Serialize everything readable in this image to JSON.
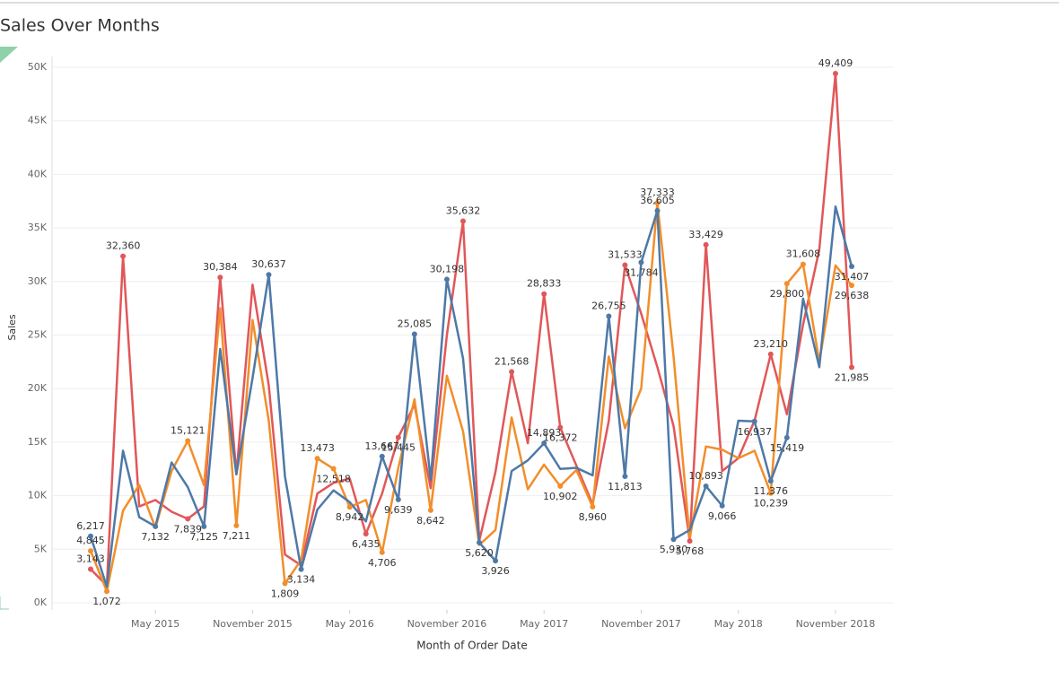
{
  "chart_data": {
    "type": "line",
    "title": "Sales Over Months",
    "x_label": "Month of Order Date",
    "y_label": "Sales",
    "x": [
      "2015-01",
      "2015-02",
      "2015-03",
      "2015-04",
      "2015-05",
      "2015-06",
      "2015-07",
      "2015-08",
      "2015-09",
      "2015-10",
      "2015-11",
      "2015-12",
      "2016-01",
      "2016-02",
      "2016-03",
      "2016-04",
      "2016-05",
      "2016-06",
      "2016-07",
      "2016-08",
      "2016-09",
      "2016-10",
      "2016-11",
      "2016-12",
      "2017-01",
      "2017-02",
      "2017-03",
      "2017-04",
      "2017-05",
      "2017-06",
      "2017-07",
      "2017-08",
      "2017-09",
      "2017-10",
      "2017-11",
      "2017-12",
      "2018-01",
      "2018-02",
      "2018-03",
      "2018-04",
      "2018-05",
      "2018-06",
      "2018-07",
      "2018-08",
      "2018-09",
      "2018-10",
      "2018-11",
      "2018-12"
    ],
    "xticks": [
      {
        "value": "2015-05",
        "label": "May 2015"
      },
      {
        "value": "2015-11",
        "label": "November 2015"
      },
      {
        "value": "2016-05",
        "label": "May 2016"
      },
      {
        "value": "2016-11",
        "label": "November 2016"
      },
      {
        "value": "2017-05",
        "label": "May 2017"
      },
      {
        "value": "2017-11",
        "label": "November 2017"
      },
      {
        "value": "2018-05",
        "label": "May 2018"
      },
      {
        "value": "2018-11",
        "label": "November 2018"
      }
    ],
    "ylim": [
      0,
      50000
    ],
    "yticks": [
      {
        "value": 0,
        "label": "0K"
      },
      {
        "value": 5000,
        "label": "5K"
      },
      {
        "value": 10000,
        "label": "10K"
      },
      {
        "value": 15000,
        "label": "15K"
      },
      {
        "value": 20000,
        "label": "20K"
      },
      {
        "value": 25000,
        "label": "25K"
      },
      {
        "value": 30000,
        "label": "30K"
      },
      {
        "value": 35000,
        "label": "35K"
      },
      {
        "value": 40000,
        "label": "40K"
      },
      {
        "value": 45000,
        "label": "45K"
      },
      {
        "value": 50000,
        "label": "50K"
      }
    ],
    "grid": true,
    "series": [
      {
        "color": "#e15759",
        "values": [
          3143,
          1600,
          32360,
          9000,
          9600,
          8500,
          7839,
          9000,
          30384,
          12000,
          29700,
          20300,
          4500,
          3500,
          10200,
          11200,
          11600,
          6435,
          10200,
          15445,
          18500,
          10700,
          25000,
          35632,
          5800,
          12200,
          21568,
          14900,
          28833,
          16372,
          12800,
          9200,
          17000,
          31533,
          27000,
          22000,
          16500,
          5768,
          33429,
          12300,
          13500,
          17000,
          23210,
          17600,
          26000,
          33000,
          49409,
          21985
        ],
        "value_labels": [
          "3,143",
          null,
          "32,360",
          null,
          null,
          null,
          "7,839",
          null,
          "30,384",
          null,
          null,
          null,
          null,
          null,
          null,
          null,
          null,
          "6,435",
          null,
          "15,445",
          null,
          null,
          null,
          "35,632",
          null,
          null,
          "21,568",
          null,
          "28,833",
          "16,372",
          null,
          null,
          null,
          "31,533",
          null,
          null,
          null,
          "5,768",
          "33,429",
          null,
          null,
          null,
          "23,210",
          null,
          null,
          null,
          "49,409",
          "21,985"
        ]
      },
      {
        "color": "#f28e2b",
        "values": [
          4845,
          1072,
          8600,
          11000,
          7000,
          12300,
          15121,
          11000,
          27500,
          7211,
          26400,
          17000,
          1809,
          4000,
          13473,
          12518,
          8942,
          9600,
          4706,
          12600,
          19000,
          8642,
          21200,
          16000,
          5400,
          6800,
          17300,
          10600,
          12900,
          10902,
          12400,
          8960,
          23000,
          16300,
          20000,
          37333,
          23000,
          6000,
          14600,
          14300,
          13500,
          14200,
          10239,
          29800,
          31608,
          22500,
          31500,
          29638
        ],
        "value_labels": [
          "4,845",
          "1,072",
          null,
          null,
          null,
          null,
          "15,121",
          null,
          null,
          "7,211",
          null,
          null,
          "1,809",
          null,
          "13,473",
          "12,518",
          "8,942",
          null,
          "4,706",
          null,
          null,
          "8,642",
          null,
          null,
          null,
          null,
          null,
          null,
          null,
          "10,902",
          null,
          "8,960",
          null,
          null,
          null,
          "37,333",
          null,
          null,
          null,
          null,
          null,
          null,
          "10,239",
          "29,800",
          "31,608",
          null,
          null,
          "29,638"
        ]
      },
      {
        "color": "#4e79a7",
        "values": [
          6217,
          1500,
          14200,
          8000,
          7132,
          13100,
          10800,
          7125,
          23700,
          12000,
          21000,
          30637,
          11800,
          3134,
          8700,
          10500,
          9400,
          7600,
          13667,
          9639,
          25085,
          11500,
          30198,
          22800,
          5620,
          3926,
          12300,
          13300,
          14893,
          12500,
          12600,
          11900,
          26755,
          11813,
          31784,
          36605,
          5930,
          6800,
          10893,
          9066,
          17000,
          16937,
          11376,
          15419,
          28400,
          22000,
          37000,
          31407
        ],
        "value_labels": [
          "6,217",
          null,
          null,
          null,
          "7,132",
          null,
          null,
          "7,125",
          null,
          null,
          null,
          "30,637",
          null,
          "3,134",
          null,
          null,
          null,
          null,
          "13,667",
          "9,639",
          "25,085",
          null,
          "30,198",
          null,
          "5,620",
          "3,926",
          null,
          null,
          "14,893",
          null,
          null,
          null,
          "26,755",
          "11,813",
          "31,784",
          "36,605",
          "5,930",
          null,
          "10,893",
          "9,066",
          null,
          "16,937",
          "11,376",
          "15,419",
          null,
          null,
          null,
          "31,407"
        ]
      }
    ]
  }
}
